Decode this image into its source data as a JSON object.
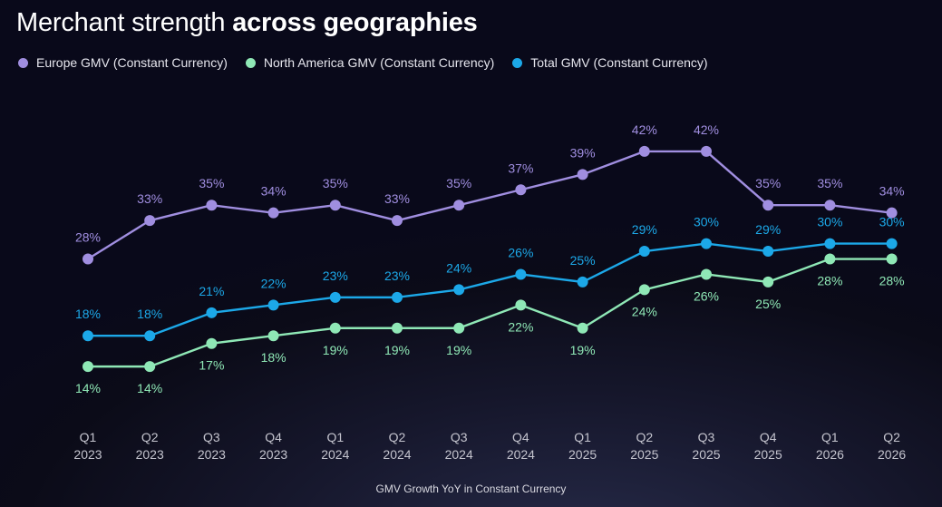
{
  "title": {
    "light": "Merchant strength",
    "bold": "across geographies"
  },
  "colors": {
    "europe": "#a08ee0",
    "north_america": "#8fe8b6",
    "total": "#1ca8e8",
    "tick_text": "#c4c4ce"
  },
  "chart_data": {
    "type": "line",
    "title": "Merchant strength across geographies",
    "xlabel": "GMV Growth YoY in Constant Currency",
    "ylabel": "",
    "categories": [
      [
        "Q1",
        "2023"
      ],
      [
        "Q2",
        "2023"
      ],
      [
        "Q3",
        "2023"
      ],
      [
        "Q4",
        "2023"
      ],
      [
        "Q1",
        "2024"
      ],
      [
        "Q2",
        "2024"
      ],
      [
        "Q3",
        "2024"
      ],
      [
        "Q4",
        "2024"
      ],
      [
        "Q1",
        "2025"
      ],
      [
        "Q2",
        "2025"
      ],
      [
        "Q3",
        "2025"
      ],
      [
        "Q4",
        "2025"
      ],
      [
        "Q1",
        "2026"
      ],
      [
        "Q2",
        "2026"
      ]
    ],
    "ylim": [
      10,
      45
    ],
    "grid": false,
    "legend_position": "top-left",
    "series": [
      {
        "key": "europe",
        "name": "Europe GMV (Constant Currency)",
        "values": [
          28,
          33,
          35,
          34,
          35,
          33,
          35,
          37,
          39,
          42,
          42,
          35,
          35,
          34
        ],
        "labels": [
          "28%",
          "33%",
          "35%",
          "34%",
          "35%",
          "33%",
          "35%",
          "37%",
          "39%",
          "42%",
          "42%",
          "35%",
          "35%",
          "34%"
        ],
        "label_position": "above"
      },
      {
        "key": "north_america",
        "name": "North America GMV (Constant Currency)",
        "values": [
          14,
          14,
          17,
          18,
          19,
          19,
          19,
          22,
          19,
          24,
          26,
          25,
          28,
          28
        ],
        "labels": [
          "14%",
          "14%",
          "17%",
          "18%",
          "19%",
          "19%",
          "19%",
          "22%",
          "19%",
          "24%",
          "26%",
          "25%",
          "28%",
          "28%"
        ],
        "label_position": "below"
      },
      {
        "key": "total",
        "name": "Total GMV (Constant Currency)",
        "values": [
          18,
          18,
          21,
          22,
          23,
          23,
          24,
          26,
          25,
          29,
          30,
          29,
          30,
          30
        ],
        "labels": [
          "18%",
          "18%",
          "21%",
          "22%",
          "23%",
          "23%",
          "24%",
          "26%",
          "25%",
          "29%",
          "30%",
          "29%",
          "30%",
          "30%"
        ],
        "label_position": "above"
      }
    ]
  }
}
